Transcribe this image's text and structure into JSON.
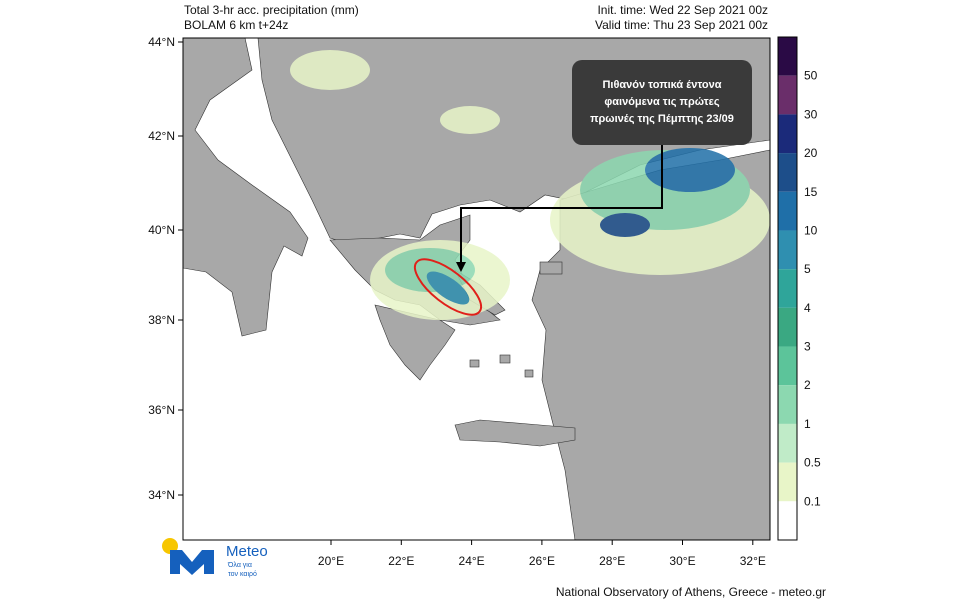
{
  "header": {
    "title": "Total 3-hr acc. precipitation (mm)",
    "model": "BOLAM 6 km t+24z",
    "init_time": "Init. time: Wed 22 Sep 2021 00z",
    "valid_time": "Valid time: Thu 23 Sep 2021 00z"
  },
  "map": {
    "lat_labels": [
      "44°N",
      "42°N",
      "40°N",
      "38°N",
      "36°N",
      "34°N"
    ],
    "lon_labels": [
      "20°E",
      "22°E",
      "24°E",
      "26°E",
      "28°E",
      "30°E",
      "32°E"
    ],
    "annotation": {
      "lines": [
        "Πιθανόν τοπικά έντονα",
        "φαινόμενα τις πρώτες",
        "πρωινές της Πέμπτης 23/09"
      ]
    }
  },
  "colorbar": {
    "labels": [
      "50",
      "30",
      "20",
      "15",
      "10",
      "5",
      "4",
      "3",
      "2",
      "1",
      "0.5",
      "0.1"
    ],
    "colors": [
      "#2a0a45",
      "#6a2e6a",
      "#1b2a7a",
      "#1d4e8a",
      "#1f6fa8",
      "#2f8fb0",
      "#2fa59a",
      "#3aa882",
      "#5cc49a",
      "#8cd8b0",
      "#c0ebc8",
      "#e8f5c8",
      "#ffffff"
    ]
  },
  "logo": {
    "name": "Meteo",
    "tagline": [
      "Όλα για",
      "τον καιρό"
    ]
  },
  "footer": "National Observatory of Athens, Greece - meteo.gr"
}
